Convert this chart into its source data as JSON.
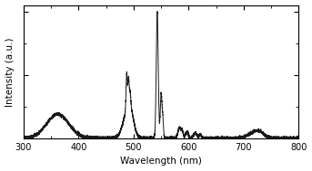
{
  "title": "",
  "xlabel": "Wavelength (nm)",
  "ylabel": "Intensity (a.u.)",
  "xlim": [
    300,
    800
  ],
  "ylim": [
    0,
    1.05
  ],
  "background_color": "#ffffff",
  "line_color": "#1a1a1a",
  "line_width": 0.7,
  "noise_amplitude": 0.006,
  "baseline": 0.003,
  "figsize": [
    3.43,
    1.89
  ],
  "dpi": 100
}
